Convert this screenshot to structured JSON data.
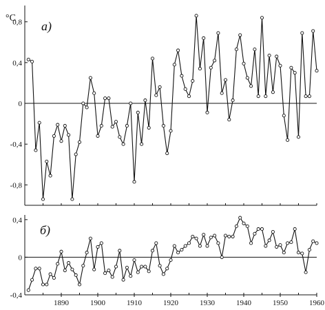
{
  "chart_data": [
    {
      "type": "line",
      "panel_label": "а)",
      "unit_label": "°C",
      "x": [
        1881,
        1882,
        1883,
        1884,
        1885,
        1886,
        1887,
        1888,
        1889,
        1890,
        1891,
        1892,
        1893,
        1894,
        1895,
        1896,
        1897,
        1898,
        1899,
        1900,
        1901,
        1902,
        1903,
        1904,
        1905,
        1906,
        1907,
        1908,
        1909,
        1910,
        1911,
        1912,
        1913,
        1914,
        1915,
        1916,
        1917,
        1918,
        1919,
        1920,
        1921,
        1922,
        1923,
        1924,
        1925,
        1926,
        1927,
        1928,
        1929,
        1930,
        1931,
        1932,
        1933,
        1934,
        1935,
        1936,
        1937,
        1938,
        1939,
        1940,
        1941,
        1942,
        1943,
        1944,
        1945,
        1946,
        1947,
        1948,
        1949,
        1950,
        1951,
        1952,
        1953,
        1954,
        1955,
        1956,
        1957,
        1958,
        1959,
        1960
      ],
      "y": [
        0.43,
        0.41,
        -0.46,
        -0.19,
        -0.94,
        -0.57,
        -0.71,
        -0.32,
        -0.21,
        -0.37,
        -0.22,
        -0.31,
        -0.94,
        -0.5,
        -0.38,
        0.0,
        -0.04,
        0.25,
        0.1,
        -0.32,
        -0.22,
        0.05,
        0.05,
        -0.23,
        -0.18,
        -0.33,
        -0.4,
        -0.22,
        0.0,
        -0.77,
        -0.09,
        -0.4,
        0.03,
        -0.24,
        0.44,
        0.08,
        0.16,
        -0.22,
        -0.49,
        -0.27,
        0.38,
        0.52,
        0.27,
        0.14,
        0.07,
        0.22,
        0.86,
        0.34,
        0.64,
        -0.09,
        0.35,
        0.42,
        0.69,
        0.1,
        0.23,
        -0.16,
        0.03,
        0.53,
        0.67,
        0.39,
        0.25,
        0.17,
        0.53,
        0.07,
        0.84,
        0.07,
        0.47,
        0.11,
        0.46,
        0.37,
        -0.12,
        -0.36,
        0.35,
        0.3,
        -0.33,
        0.69,
        0.07,
        0.07,
        0.71,
        0.32
      ],
      "xlim": [
        1880,
        1960
      ],
      "ylim": [
        -1.0,
        0.96
      ],
      "yticks": [
        "0,8",
        "0,4",
        "0",
        "-0,4",
        "-0,8"
      ],
      "ytick_values": [
        0.8,
        0.4,
        0,
        -0.4,
        -0.8
      ]
    },
    {
      "type": "line",
      "panel_label": "б)",
      "x": [
        1881,
        1882,
        1883,
        1884,
        1885,
        1886,
        1887,
        1888,
        1889,
        1890,
        1891,
        1892,
        1893,
        1894,
        1895,
        1896,
        1897,
        1898,
        1899,
        1900,
        1901,
        1902,
        1903,
        1904,
        1905,
        1906,
        1907,
        1908,
        1909,
        1910,
        1911,
        1912,
        1913,
        1914,
        1915,
        1916,
        1917,
        1918,
        1919,
        1920,
        1921,
        1922,
        1923,
        1924,
        1925,
        1926,
        1927,
        1928,
        1929,
        1930,
        1931,
        1932,
        1933,
        1934,
        1935,
        1936,
        1937,
        1938,
        1939,
        1940,
        1941,
        1942,
        1943,
        1944,
        1945,
        1946,
        1947,
        1948,
        1949,
        1950,
        1951,
        1952,
        1953,
        1954,
        1955,
        1956,
        1957,
        1958,
        1959,
        1960
      ],
      "y": [
        -0.35,
        -0.24,
        -0.12,
        -0.12,
        -0.29,
        -0.29,
        -0.18,
        -0.22,
        -0.07,
        0.06,
        -0.14,
        -0.06,
        -0.13,
        -0.19,
        -0.29,
        -0.09,
        0.05,
        0.2,
        -0.13,
        0.11,
        0.15,
        -0.17,
        -0.14,
        -0.21,
        -0.1,
        0.07,
        -0.24,
        -0.11,
        -0.2,
        -0.03,
        -0.16,
        -0.1,
        -0.1,
        -0.15,
        0.07,
        0.15,
        -0.09,
        -0.18,
        -0.12,
        -0.03,
        0.12,
        0.05,
        0.08,
        0.12,
        0.15,
        0.22,
        0.2,
        0.12,
        0.24,
        0.12,
        0.21,
        0.23,
        0.15,
        0.0,
        0.23,
        0.22,
        0.22,
        0.33,
        0.42,
        0.36,
        0.33,
        0.15,
        0.25,
        0.3,
        0.3,
        0.12,
        0.18,
        0.27,
        0.11,
        0.13,
        0.05,
        0.15,
        0.16,
        0.3,
        0.05,
        0.04,
        -0.16,
        0.08,
        0.17,
        0.15
      ],
      "xlim": [
        1880,
        1960
      ],
      "ylim": [
        -0.4,
        0.45
      ],
      "yticks": [
        "0,4",
        "0",
        "-0,4"
      ],
      "ytick_values": [
        0.4,
        0,
        -0.4
      ],
      "xticks": [
        "1890",
        "1900",
        "1910",
        "1920",
        "1930",
        "1940",
        "1950",
        "1960"
      ],
      "xtick_values": [
        1890,
        1900,
        1910,
        1920,
        1930,
        1940,
        1950,
        1960
      ]
    }
  ]
}
